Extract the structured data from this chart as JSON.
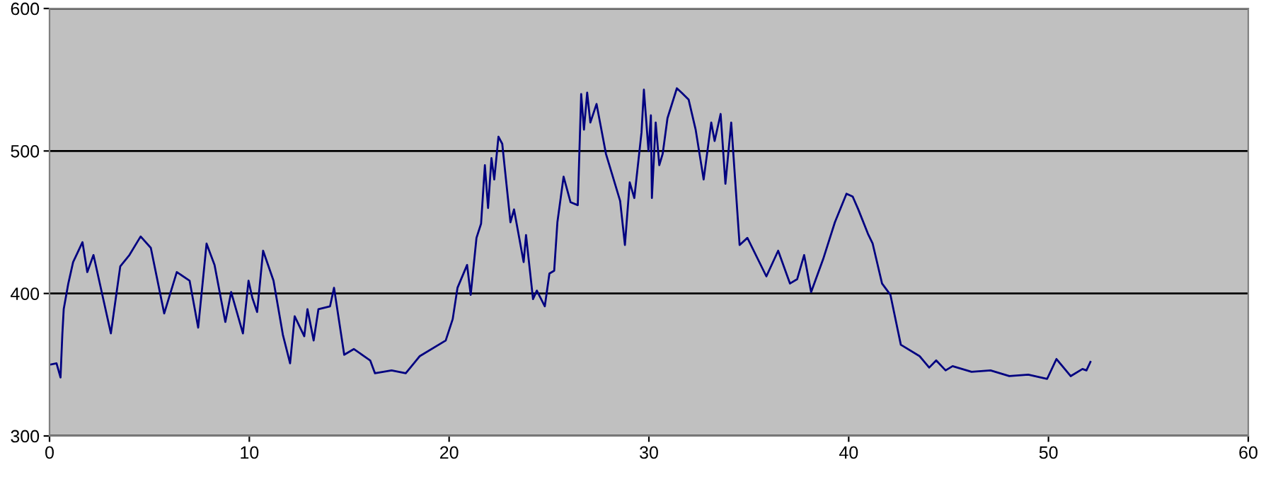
{
  "chart_data": {
    "type": "line",
    "x": [
      0,
      0.35,
      0.55,
      0.64,
      0.71,
      0.94,
      1.18,
      1.65,
      1.89,
      2.2,
      3.07,
      3.54,
      4.0,
      4.56,
      5.07,
      5.74,
      6.37,
      7.01,
      7.44,
      7.86,
      8.26,
      8.8,
      9.09,
      9.68,
      9.96,
      10.15,
      10.39,
      10.69,
      11.21,
      11.68,
      12.04,
      12.27,
      12.75,
      12.91,
      13.22,
      13.46,
      14.04,
      14.24,
      14.75,
      15.23,
      16.05,
      16.29,
      17.12,
      17.83,
      18.53,
      19.83,
      20.18,
      20.42,
      20.9,
      21.08,
      21.37,
      21.6,
      21.79,
      21.95,
      22.12,
      22.26,
      22.47,
      22.66,
      23.07,
      23.25,
      23.73,
      23.85,
      24.2,
      24.39,
      24.79,
      25.02,
      25.26,
      25.42,
      25.73,
      26.08,
      26.44,
      26.61,
      26.75,
      26.91,
      27.07,
      27.38,
      27.85,
      28.56,
      28.8,
      29.04,
      29.27,
      29.63,
      29.75,
      29.98,
      30.1,
      30.15,
      30.34,
      30.52,
      30.69,
      30.93,
      31.4,
      31.63,
      31.99,
      32.34,
      32.74,
      33.12,
      33.29,
      33.59,
      33.83,
      34.12,
      34.54,
      34.93,
      35.88,
      36.47,
      37.06,
      37.42,
      37.77,
      38.12,
      38.72,
      39.31,
      39.89,
      40.2,
      40.48,
      40.96,
      41.2,
      41.67,
      42.09,
      42.61,
      43.55,
      44.03,
      44.38,
      44.85,
      45.2,
      46.15,
      47.1,
      48.04,
      48.99,
      49.93,
      50.4,
      51.11,
      51.7,
      51.9,
      52.1
    ],
    "series": [
      {
        "color": "#000080",
        "values": [
          350,
          351,
          341,
          371,
          389,
          407,
          422,
          436,
          415,
          427,
          372,
          419,
          427,
          440,
          432,
          386,
          415,
          409,
          376,
          435,
          420,
          380,
          401,
          372,
          409,
          397,
          387,
          430,
          409,
          371,
          351,
          384,
          370,
          389,
          367,
          389,
          391,
          404,
          357,
          361,
          353,
          344,
          346,
          344,
          356,
          367,
          382,
          404,
          420,
          399,
          439,
          449,
          490,
          460,
          495,
          480,
          510,
          505,
          450,
          459,
          422,
          441,
          396,
          402,
          391,
          414,
          416,
          450,
          482,
          464,
          462,
          540,
          515,
          541,
          520,
          533,
          498,
          465,
          434,
          478,
          467,
          513,
          543,
          500,
          525,
          467,
          520,
          490,
          498,
          523,
          544,
          541,
          536,
          515,
          480,
          520,
          507,
          526,
          477,
          520,
          434,
          439,
          412,
          430,
          407,
          410,
          427,
          401,
          424,
          450,
          470,
          468,
          459,
          442,
          435,
          407,
          399,
          364,
          356,
          348,
          353,
          346,
          349,
          345,
          346,
          342,
          343,
          340,
          354,
          342,
          347,
          346,
          352
        ]
      }
    ],
    "xlim": [
      0,
      60
    ],
    "xticks": [
      0,
      10,
      20,
      30,
      40,
      50,
      60
    ],
    "ylim": [
      300,
      600
    ],
    "yticks": [
      300,
      400,
      500,
      600
    ],
    "grid": "y",
    "legend": false
  }
}
